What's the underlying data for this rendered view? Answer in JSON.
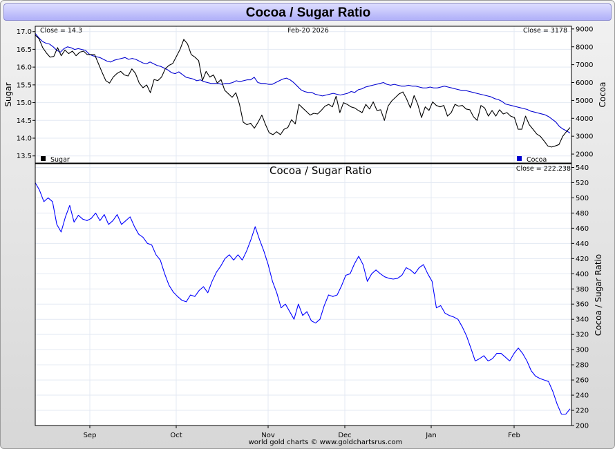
{
  "title": "Cocoa / Sugar Ratio",
  "footer": "world gold charts © www.goldchartsrus.com",
  "x_axis_labels": [
    "Sep",
    "Oct",
    "Nov",
    "Dec",
    "Jan",
    "Feb"
  ],
  "chart_data": [
    {
      "type": "line",
      "date": "Feb-20  2026",
      "left_axis": {
        "label": "Sugar",
        "ylim": [
          13.3,
          17.15
        ],
        "ticks": [
          "17.0",
          "16.5",
          "16.0",
          "15.5",
          "15.0",
          "14.5",
          "14.0",
          "13.5"
        ]
      },
      "right_axis": {
        "label": "Cocoa",
        "ylim": [
          1500,
          9150
        ],
        "ticks": [
          "9000",
          "8000",
          "7000",
          "6000",
          "5000",
          "4000",
          "3000",
          "2000"
        ]
      },
      "series": [
        {
          "name": "Sugar",
          "axis": "left",
          "color": "#000000",
          "close_label": "Close = 14.3",
          "values": [
            16.9,
            16.8,
            16.55,
            16.4,
            16.28,
            16.3,
            16.55,
            16.32,
            16.48,
            16.38,
            16.45,
            16.32,
            16.42,
            16.45,
            16.35,
            16.35,
            16.35,
            16.1,
            15.85,
            15.62,
            15.55,
            15.72,
            15.82,
            15.88,
            15.78,
            15.75,
            15.95,
            15.82,
            15.55,
            15.42,
            15.5,
            15.28,
            15.65,
            15.62,
            15.72,
            15.95,
            16.05,
            16.1,
            16.3,
            16.5,
            16.78,
            16.65,
            16.35,
            16.28,
            16.18,
            15.62,
            15.88,
            15.72,
            15.78,
            15.55,
            15.65,
            15.35,
            15.25,
            15.15,
            15.28,
            14.95,
            14.45,
            14.38,
            14.42,
            14.28,
            14.45,
            14.65,
            14.38,
            14.15,
            14.1,
            14.18,
            14.1,
            14.25,
            14.3,
            14.52,
            14.4,
            14.95,
            14.85,
            14.75,
            14.65,
            14.7,
            14.68,
            14.78,
            14.9,
            14.95,
            14.88,
            15.18,
            14.72,
            15.0,
            14.95,
            14.88,
            14.85,
            14.78,
            14.72,
            14.95,
            14.82,
            15.02,
            14.78,
            14.8,
            14.5,
            14.9,
            15.05,
            15.15,
            15.25,
            15.3,
            15.1,
            14.85,
            15.2,
            14.95,
            14.58,
            14.88,
            14.78,
            15.02,
            14.92,
            14.88,
            14.92,
            14.62,
            14.72,
            14.95,
            14.9,
            14.92,
            14.82,
            14.8,
            14.6,
            14.5,
            14.92,
            14.85,
            14.62,
            14.78,
            14.62,
            14.8,
            14.68,
            14.72,
            14.62,
            14.58,
            14.25,
            14.25,
            14.62,
            14.38,
            14.25,
            14.12,
            14.05,
            13.92,
            13.78,
            13.75,
            13.78,
            13.82,
            14.05,
            14.18,
            14.3
          ]
        },
        {
          "name": "Cocoa",
          "axis": "right",
          "color": "#0000d0",
          "close_label": "Close = 3178",
          "values": [
            8750,
            8500,
            8300,
            8200,
            8150,
            8000,
            7800,
            7700,
            7900,
            8000,
            7950,
            7850,
            7900,
            7850,
            7800,
            7600,
            7500,
            7450,
            7400,
            7300,
            7200,
            7150,
            7250,
            7300,
            7350,
            7400,
            7300,
            7350,
            7300,
            7200,
            7100,
            7050,
            7150,
            7050,
            6950,
            6900,
            6800,
            6700,
            6550,
            6500,
            6600,
            6450,
            6300,
            6250,
            6200,
            6100,
            6150,
            6050,
            6000,
            5950,
            5950,
            5950,
            5900,
            5950,
            5950,
            6000,
            6100,
            6050,
            6100,
            6150,
            6150,
            6300,
            6000,
            5950,
            5950,
            5900,
            5900,
            6000,
            6100,
            6200,
            6250,
            6150,
            6000,
            5800,
            5600,
            5500,
            5450,
            5450,
            5350,
            5300,
            5250,
            5300,
            5350,
            5400,
            5350,
            5300,
            5350,
            5400,
            5500,
            5450,
            5600,
            5650,
            5750,
            5800,
            5850,
            5900,
            5950,
            6000,
            5900,
            5850,
            5900,
            5850,
            5800,
            5800,
            5850,
            5800,
            5800,
            5750,
            5700,
            5700,
            5750,
            5700,
            5700,
            5750,
            5800,
            5750,
            5700,
            5650,
            5600,
            5550,
            5550,
            5500,
            5450,
            5400,
            5350,
            5300,
            5250,
            5200,
            5100,
            5050,
            4950,
            4800,
            4750,
            4700,
            4650,
            4600,
            4550,
            4500,
            4400,
            4350,
            4300,
            4250,
            4200,
            4100,
            3950,
            3800,
            3550,
            3400,
            3300,
            3178
          ]
        }
      ]
    },
    {
      "type": "line",
      "title": "Cocoa  /  Sugar Ratio",
      "close_label": "Close = 222.238",
      "right_axis": {
        "label": "Cocoa / Sugar Ratio",
        "ylim": [
          200,
          545
        ],
        "ticks": [
          "540",
          "520",
          "500",
          "480",
          "460",
          "440",
          "420",
          "400",
          "380",
          "360",
          "340",
          "320",
          "300",
          "280",
          "260",
          "240",
          "220",
          "200"
        ]
      },
      "series": [
        {
          "name": "Cocoa / Sugar Ratio",
          "color": "#0000ff",
          "values": [
            520,
            510,
            495,
            500,
            495,
            465,
            455,
            475,
            490,
            468,
            477,
            472,
            470,
            473,
            480,
            470,
            478,
            465,
            470,
            478,
            465,
            470,
            475,
            462,
            452,
            448,
            440,
            438,
            425,
            418,
            400,
            385,
            376,
            370,
            365,
            363,
            372,
            370,
            378,
            383,
            375,
            390,
            402,
            410,
            420,
            425,
            418,
            425,
            418,
            430,
            445,
            462,
            445,
            430,
            412,
            390,
            375,
            355,
            360,
            350,
            340,
            360,
            345,
            350,
            338,
            335,
            340,
            358,
            372,
            370,
            372,
            384,
            398,
            400,
            413,
            423,
            412,
            390,
            400,
            405,
            400,
            396,
            394,
            393,
            394,
            398,
            408,
            405,
            400,
            408,
            412,
            400,
            390,
            355,
            358,
            348,
            345,
            343,
            340,
            330,
            318,
            302,
            285,
            288,
            292,
            285,
            288,
            295,
            295,
            290,
            285,
            295,
            302,
            295,
            285,
            272,
            265,
            262,
            260,
            258,
            245,
            228,
            215,
            215,
            222
          ]
        }
      ]
    }
  ]
}
